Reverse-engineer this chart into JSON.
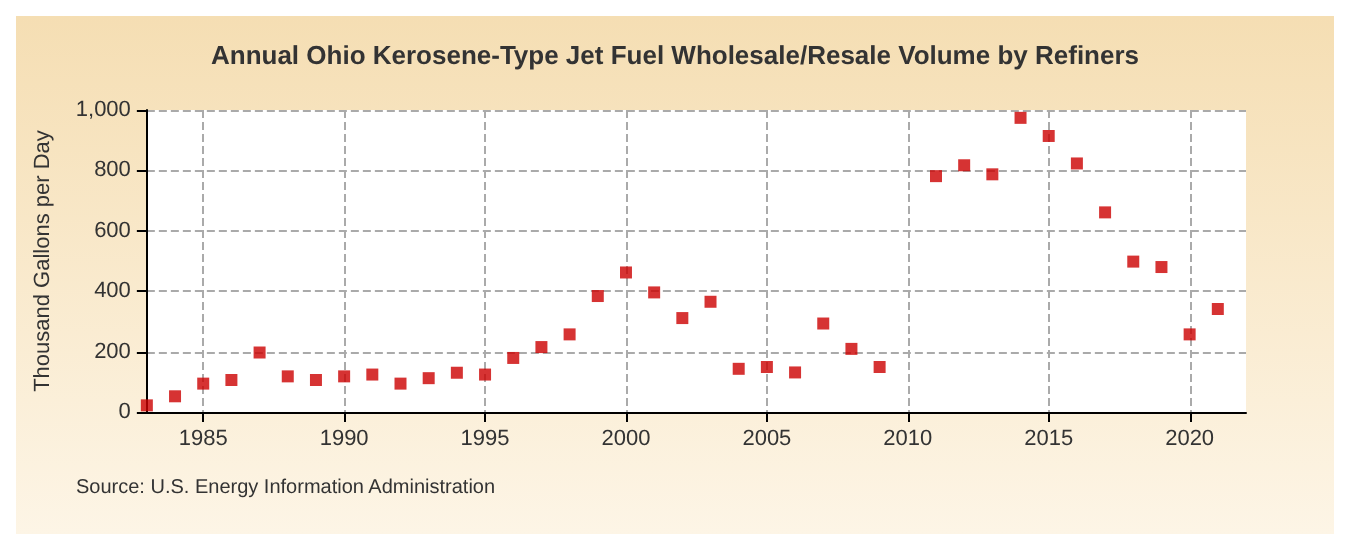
{
  "chart_data": {
    "type": "scatter",
    "title": "Annual Ohio Kerosene-Type Jet Fuel Wholesale/Resale Volume by Refiners",
    "ylabel": "Thousand Gallons per Day",
    "x": [
      1983,
      1984,
      1985,
      1986,
      1987,
      1988,
      1989,
      1990,
      1991,
      1992,
      1993,
      1994,
      1995,
      1996,
      1997,
      1998,
      1999,
      2000,
      2001,
      2002,
      2003,
      2004,
      2005,
      2006,
      2007,
      2008,
      2009,
      2011,
      2012,
      2013,
      2014,
      2015,
      2016,
      2017,
      2018,
      2019,
      2020,
      2021
    ],
    "series": [
      {
        "color": "#cc0000",
        "values": [
          22,
          52,
          94,
          106,
          197,
          118,
          106,
          118,
          124,
          94,
          112,
          130,
          124,
          179,
          215,
          257,
          384,
          462,
          396,
          311,
          365,
          143,
          149,
          131,
          293,
          209,
          149,
          781,
          817,
          787,
          974,
          914,
          823,
          661,
          498,
          480,
          257,
          341
        ]
      }
    ],
    "xlim": [
      1983,
      2022
    ],
    "xticks": [
      1985,
      1990,
      1995,
      2000,
      2005,
      2010,
      2015,
      2020
    ],
    "ylim": [
      0,
      1000
    ],
    "yticks": [
      0,
      200,
      400,
      600,
      800,
      {
        "value": 1000,
        "label": "1,000"
      }
    ],
    "grid": true,
    "marker": "square",
    "annotations": [
      "Source: U.S. Energy Information Administration"
    ]
  }
}
